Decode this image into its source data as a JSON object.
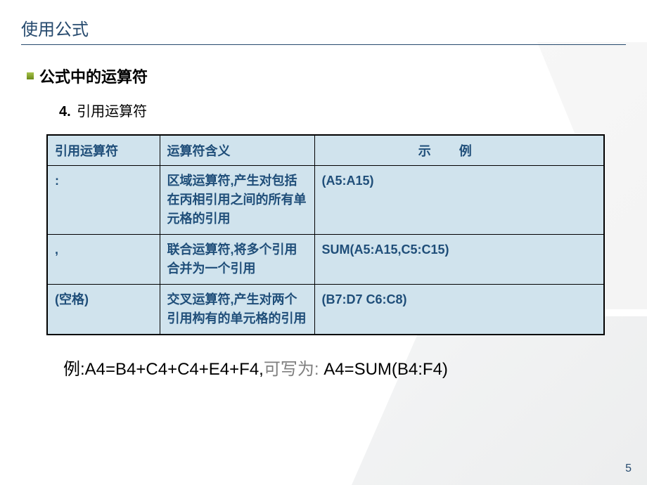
{
  "title": "使用公式",
  "subtitle": "公式中的运算符",
  "item_number": "4.",
  "item_text": "引用运算符",
  "table": {
    "header_bg": "#d0e3ed",
    "cell_bg": "#d0e3ed",
    "border_color": "#000000",
    "text_color": "#1f4e79",
    "columns": [
      "引用运算符",
      "运算符含义",
      "示例"
    ],
    "rows": [
      {
        "op": ":",
        "meaning": "区域运算符,产生对包括在丙相引用之间的所有单元格的引用",
        "example": "(A5:A15)"
      },
      {
        "op": ",",
        "meaning": "联合运算符,将多个引用合并为一个引用",
        "example": "SUM(A5:A15,C5:C15)"
      },
      {
        "op": "(空格)",
        "meaning": "交叉运算符,产生对两个引用构有的单元格的引用",
        "example": "(B7:D7 C6:C8)"
      }
    ]
  },
  "example_prefix": "例:A4=B4+C4+C4+E4+F4,",
  "example_gray": "可写为:",
  "example_suffix": " A4=SUM(B4:F4)",
  "page_number": "5",
  "colors": {
    "title_color": "#264a6e",
    "bullet_gradient_top": "#a6c24a",
    "bullet_gradient_bottom": "#6b8a1a",
    "background": "#ffffff"
  }
}
